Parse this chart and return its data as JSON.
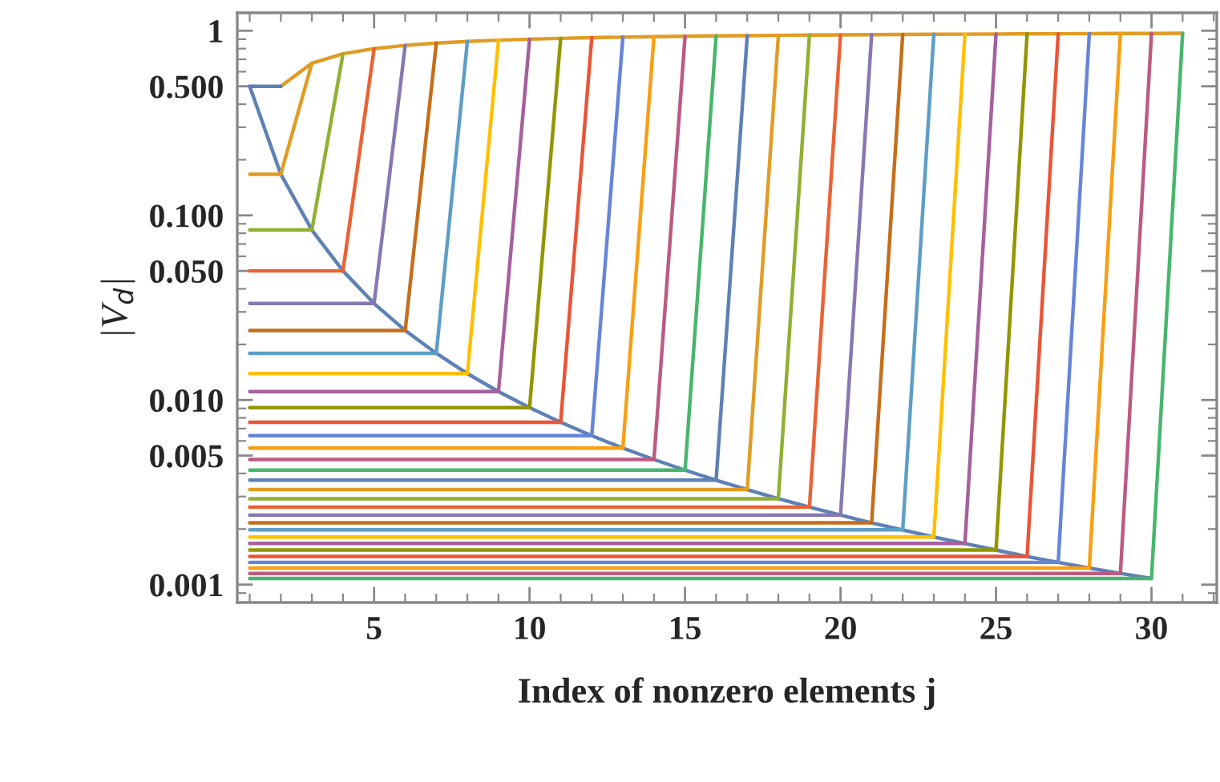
{
  "chart_data": {
    "type": "line",
    "xlabel": "Index of nonzero elements j",
    "ylabel": "|V$_{d}$|",
    "log": "y",
    "xlim": [
      0.6,
      32.1
    ],
    "ylim": [
      0.0008,
      1.25
    ],
    "xticks": [
      5,
      10,
      15,
      20,
      25,
      30
    ],
    "yticks": [
      {
        "value": 0.001,
        "label": "0.001"
      },
      {
        "value": 0.005,
        "label": "0.005"
      },
      {
        "value": 0.01,
        "label": "0.010"
      },
      {
        "value": 0.05,
        "label": "0.050"
      },
      {
        "value": 0.1,
        "label": "0.100"
      },
      {
        "value": 0.5,
        "label": "0.500"
      },
      {
        "value": 1,
        "label": "1"
      }
    ],
    "grid": false,
    "marker": "none",
    "line_style": "solid",
    "series": [
      {
        "color": "#5e81b5",
        "x": [
          1,
          2,
          3,
          4,
          5,
          6,
          7,
          8,
          9,
          10,
          11,
          12,
          13,
          14,
          15,
          16,
          17,
          18,
          19,
          20,
          21,
          22,
          23,
          24,
          25,
          26,
          27,
          28,
          29,
          30
        ],
        "values": [
          0.5,
          0.167,
          0.0833,
          0.05,
          0.0333,
          0.0238,
          0.0179,
          0.0139,
          0.0111,
          0.00909,
          0.00758,
          0.00641,
          0.00549,
          0.00476,
          0.00417,
          0.00368,
          0.00327,
          0.00292,
          0.00263,
          0.00238,
          0.00216,
          0.00198,
          0.00181,
          0.00167,
          0.00154,
          0.00142,
          0.00132,
          0.00123,
          0.00115,
          0.00108
        ]
      },
      {
        "color": "#e19c24",
        "x": [
          2,
          3,
          4,
          5,
          6,
          7,
          8,
          9,
          10,
          11,
          12,
          13,
          14,
          15,
          16,
          17,
          18,
          19,
          20,
          21,
          22,
          23,
          24,
          25,
          26,
          27,
          28,
          29,
          30,
          31
        ],
        "values": [
          0.5,
          0.667,
          0.75,
          0.8,
          0.833,
          0.857,
          0.875,
          0.889,
          0.9,
          0.909,
          0.917,
          0.923,
          0.929,
          0.933,
          0.938,
          0.941,
          0.944,
          0.947,
          0.95,
          0.952,
          0.955,
          0.957,
          0.958,
          0.96,
          0.962,
          0.963,
          0.964,
          0.966,
          0.967,
          0.968
        ]
      },
      {
        "color": "#5e81b5",
        "x": [
          1,
          2
        ],
        "values": [
          0.5,
          0.5
        ]
      },
      {
        "color": "#e19c24",
        "x": [
          1,
          2,
          3
        ],
        "values": [
          0.167,
          0.167,
          0.667
        ]
      },
      {
        "color": "#8fb032",
        "x": [
          1,
          3,
          4
        ],
        "values": [
          0.0833,
          0.0833,
          0.75
        ]
      },
      {
        "color": "#eb6235",
        "x": [
          1,
          4,
          5
        ],
        "values": [
          0.05,
          0.05,
          0.8
        ]
      },
      {
        "color": "#8778b3",
        "x": [
          1,
          5,
          6
        ],
        "values": [
          0.0333,
          0.0333,
          0.833
        ]
      },
      {
        "color": "#c56e1a",
        "x": [
          1,
          6,
          7
        ],
        "values": [
          0.0238,
          0.0238,
          0.857
        ]
      },
      {
        "color": "#5d9ec7",
        "x": [
          1,
          7,
          8
        ],
        "values": [
          0.0179,
          0.0179,
          0.875
        ]
      },
      {
        "color": "#ffbf00",
        "x": [
          1,
          8,
          9
        ],
        "values": [
          0.0139,
          0.0139,
          0.889
        ]
      },
      {
        "color": "#a5609d",
        "x": [
          1,
          9,
          10
        ],
        "values": [
          0.0111,
          0.0111,
          0.9
        ]
      },
      {
        "color": "#929600",
        "x": [
          1,
          10,
          11
        ],
        "values": [
          0.00909,
          0.00909,
          0.909
        ]
      },
      {
        "color": "#e95536",
        "x": [
          1,
          11,
          12
        ],
        "values": [
          0.00758,
          0.00758,
          0.917
        ]
      },
      {
        "color": "#6685d9",
        "x": [
          1,
          12,
          13
        ],
        "values": [
          0.00641,
          0.00641,
          0.923
        ]
      },
      {
        "color": "#f89f13",
        "x": [
          1,
          13,
          14
        ],
        "values": [
          0.00549,
          0.00549,
          0.929
        ]
      },
      {
        "color": "#bc5b80",
        "x": [
          1,
          14,
          15
        ],
        "values": [
          0.00476,
          0.00476,
          0.933
        ]
      },
      {
        "color": "#47b66d",
        "x": [
          1,
          15,
          16
        ],
        "values": [
          0.00417,
          0.00417,
          0.938
        ]
      },
      {
        "color": "#5e81b5",
        "x": [
          1,
          16,
          17
        ],
        "values": [
          0.00368,
          0.00368,
          0.941
        ]
      },
      {
        "color": "#e19c24",
        "x": [
          1,
          17,
          18
        ],
        "values": [
          0.00327,
          0.00327,
          0.944
        ]
      },
      {
        "color": "#8fb032",
        "x": [
          1,
          18,
          19
        ],
        "values": [
          0.00292,
          0.00292,
          0.947
        ]
      },
      {
        "color": "#eb6235",
        "x": [
          1,
          19,
          20
        ],
        "values": [
          0.00263,
          0.00263,
          0.95
        ]
      },
      {
        "color": "#8778b3",
        "x": [
          1,
          20,
          21
        ],
        "values": [
          0.00238,
          0.00238,
          0.952
        ]
      },
      {
        "color": "#c56e1a",
        "x": [
          1,
          21,
          22
        ],
        "values": [
          0.00216,
          0.00216,
          0.955
        ]
      },
      {
        "color": "#5d9ec7",
        "x": [
          1,
          22,
          23
        ],
        "values": [
          0.00198,
          0.00198,
          0.957
        ]
      },
      {
        "color": "#ffbf00",
        "x": [
          1,
          23,
          24
        ],
        "values": [
          0.00181,
          0.00181,
          0.958
        ]
      },
      {
        "color": "#a5609d",
        "x": [
          1,
          24,
          25
        ],
        "values": [
          0.00167,
          0.00167,
          0.96
        ]
      },
      {
        "color": "#929600",
        "x": [
          1,
          25,
          26
        ],
        "values": [
          0.00154,
          0.00154,
          0.962
        ]
      },
      {
        "color": "#e95536",
        "x": [
          1,
          26,
          27
        ],
        "values": [
          0.00142,
          0.00142,
          0.963
        ]
      },
      {
        "color": "#6685d9",
        "x": [
          1,
          27,
          28
        ],
        "values": [
          0.00132,
          0.00132,
          0.964
        ]
      },
      {
        "color": "#f89f13",
        "x": [
          1,
          28,
          29
        ],
        "values": [
          0.00123,
          0.00123,
          0.966
        ]
      },
      {
        "color": "#bc5b80",
        "x": [
          1,
          29,
          30
        ],
        "values": [
          0.00115,
          0.00115,
          0.967
        ]
      },
      {
        "color": "#47b66d",
        "x": [
          1,
          30,
          31
        ],
        "values": [
          0.00108,
          0.00108,
          0.968
        ]
      }
    ]
  }
}
